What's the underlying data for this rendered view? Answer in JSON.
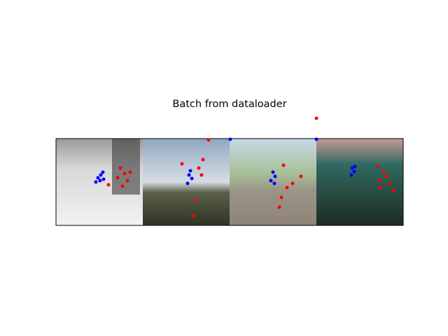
{
  "title": "Batch from dataloader"
}
